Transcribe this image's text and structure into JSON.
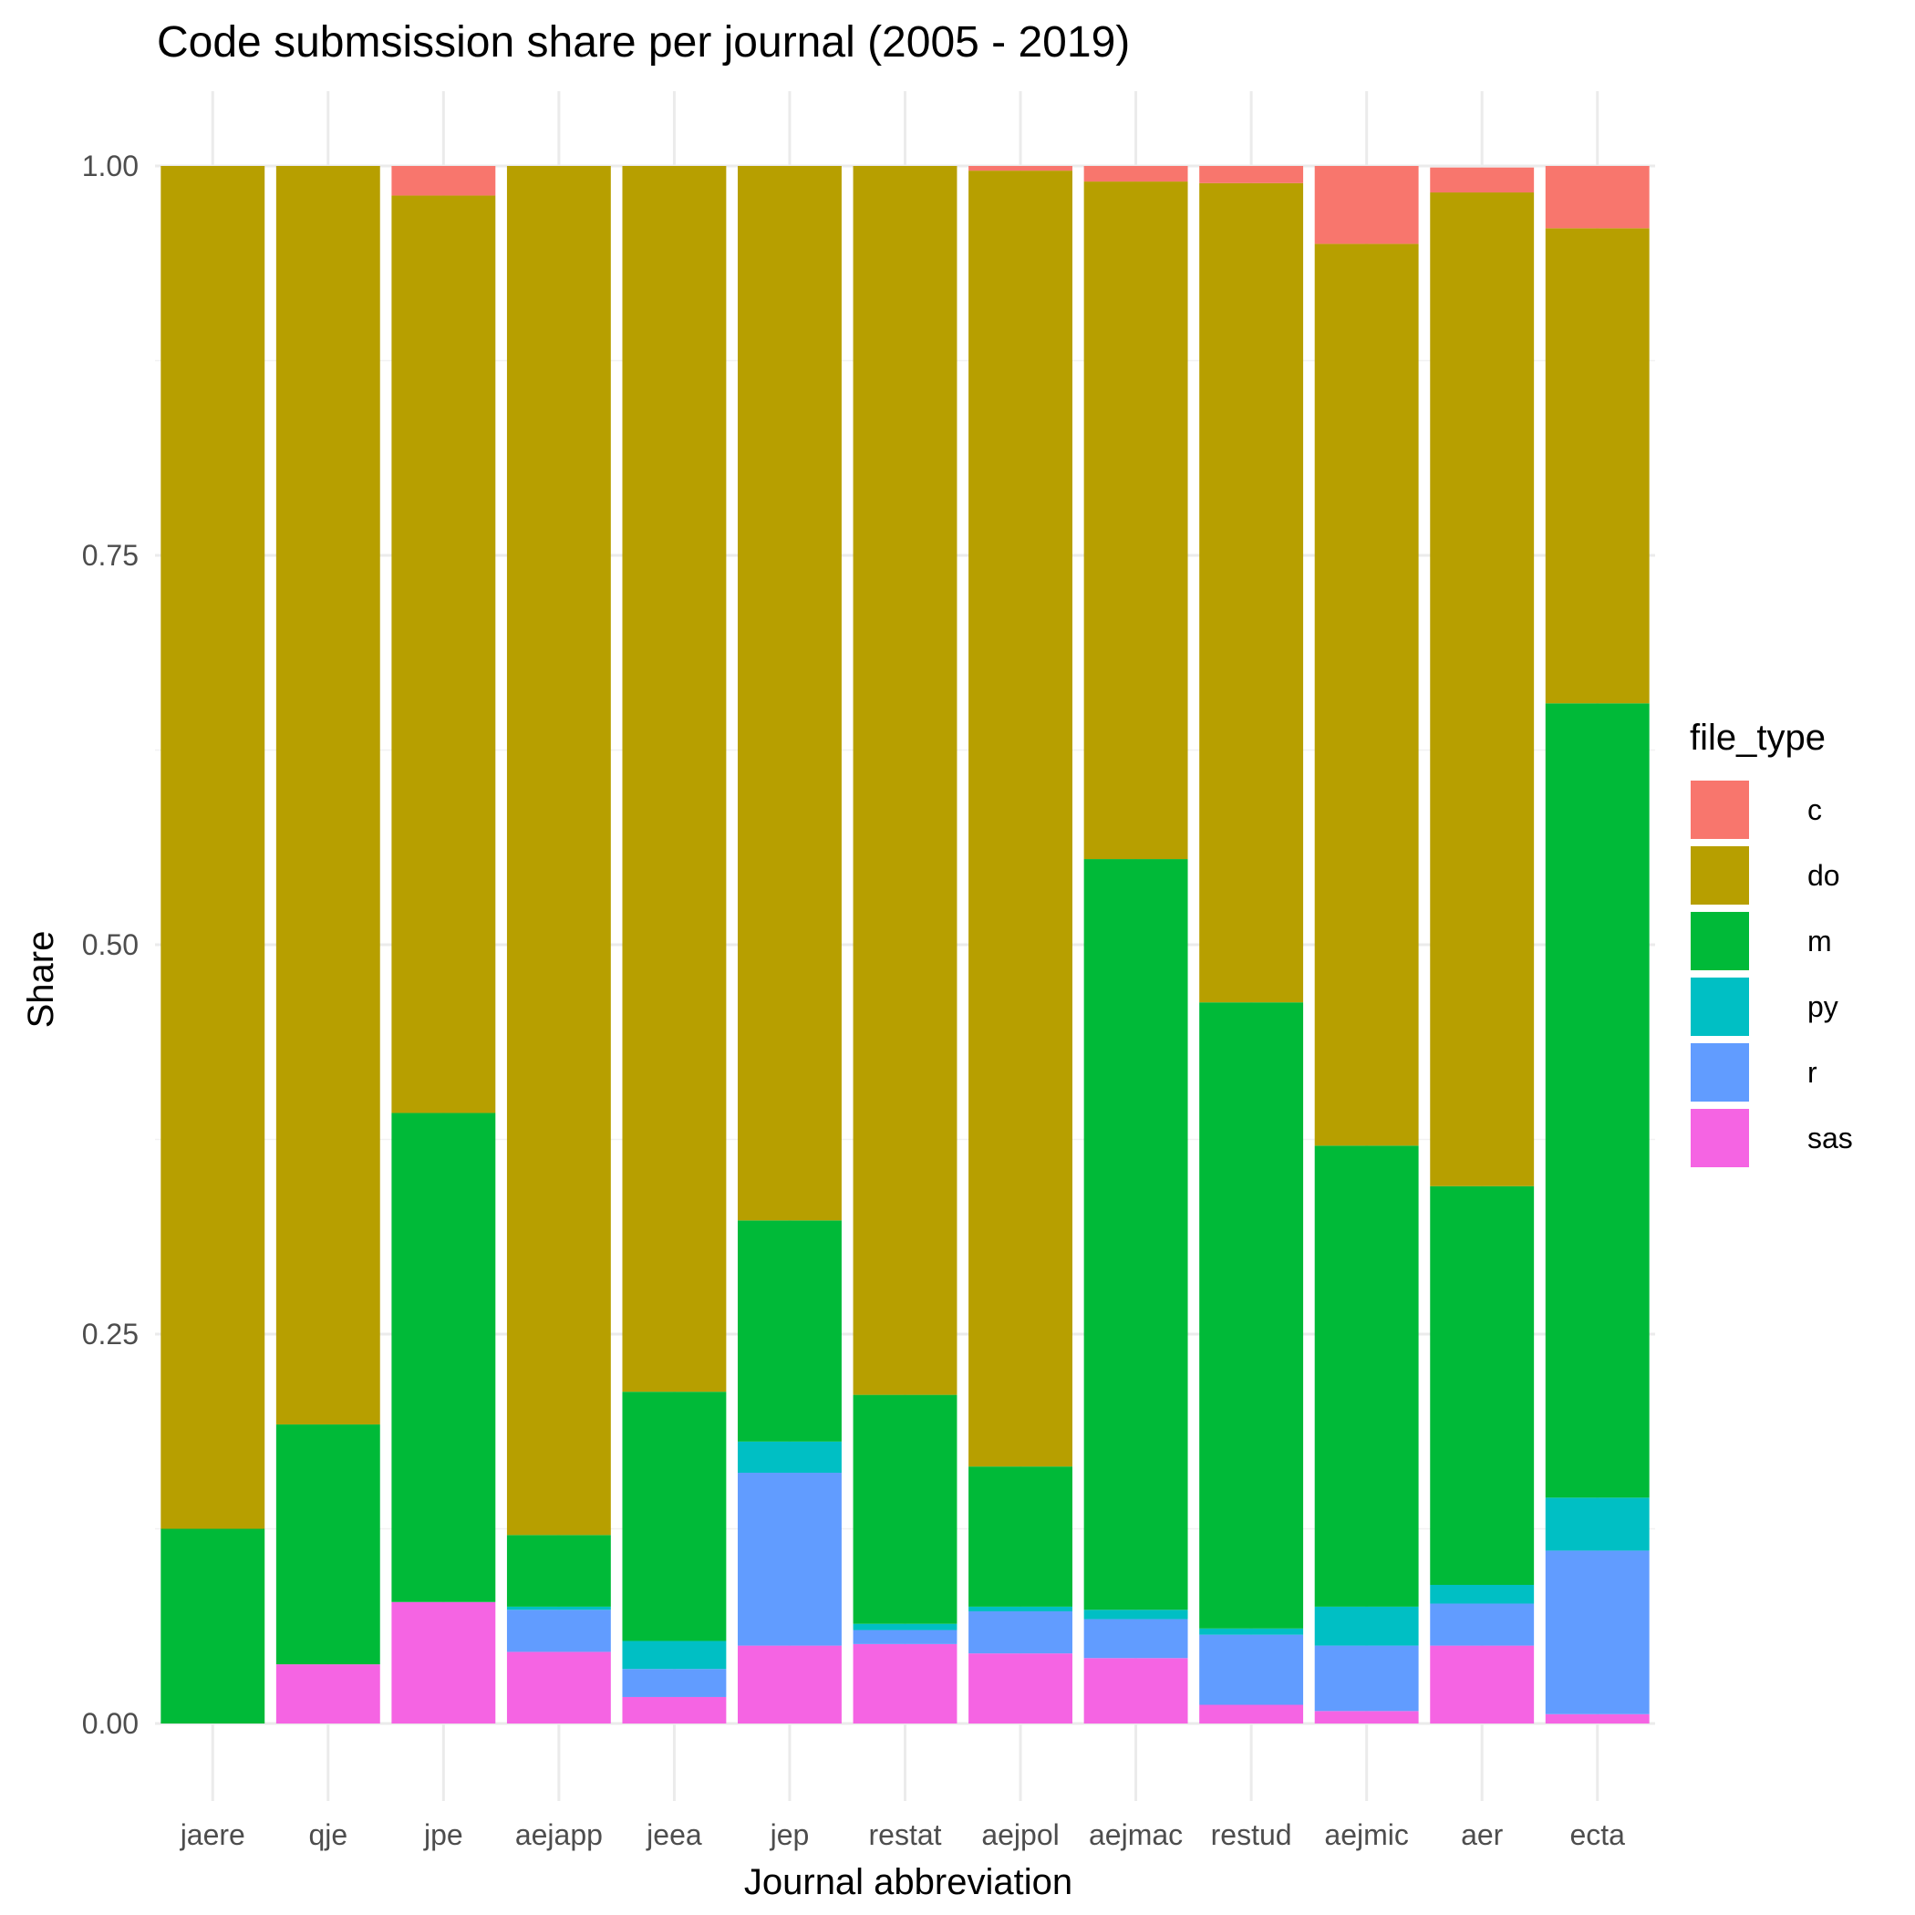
{
  "chart_data": {
    "type": "bar",
    "stacked": true,
    "title": "Code submsission share per journal (2005 - 2019)",
    "xlabel": "Journal abbreviation",
    "ylabel": "Share",
    "ylim": [
      0,
      1
    ],
    "yticks": [
      "0.00",
      "0.25",
      "0.50",
      "0.75",
      "1.00"
    ],
    "ytick_values": [
      0,
      0.25,
      0.5,
      0.75,
      1.0
    ],
    "grid": true,
    "legend_title": "file_type",
    "legend_position": "right",
    "categories": [
      "jaere",
      "qje",
      "jpe",
      "aejapp",
      "jeea",
      "jep",
      "restat",
      "aejpol",
      "aejmac",
      "restud",
      "aejmic",
      "aer",
      "ecta"
    ],
    "series": [
      {
        "name": "sas",
        "color": "#F564E3",
        "values": [
          0.0,
          0.038,
          0.078,
          0.046,
          0.017,
          0.05,
          0.051,
          0.045,
          0.042,
          0.012,
          0.008,
          0.05,
          0.006
        ]
      },
      {
        "name": "r",
        "color": "#619CFF",
        "values": [
          0.0,
          0.0,
          0.0,
          0.027,
          0.018,
          0.111,
          0.009,
          0.027,
          0.025,
          0.045,
          0.042,
          0.027,
          0.105
        ]
      },
      {
        "name": "py",
        "color": "#00BFC4",
        "values": [
          0.0,
          0.0,
          0.0,
          0.002,
          0.018,
          0.02,
          0.004,
          0.003,
          0.006,
          0.004,
          0.025,
          0.012,
          0.034
        ]
      },
      {
        "name": "m",
        "color": "#00BA38",
        "values": [
          0.125,
          0.154,
          0.314,
          0.046,
          0.16,
          0.142,
          0.147,
          0.09,
          0.482,
          0.402,
          0.296,
          0.256,
          0.51
        ]
      },
      {
        "name": "do",
        "color": "#B79F00",
        "values": [
          0.875,
          0.808,
          0.589,
          0.879,
          0.787,
          0.677,
          0.789,
          0.832,
          0.435,
          0.526,
          0.579,
          0.638,
          0.305
        ]
      },
      {
        "name": "c",
        "color": "#F8766D",
        "values": [
          0.0,
          0.0,
          0.019,
          0.0,
          0.0,
          0.0,
          0.0,
          0.003,
          0.01,
          0.011,
          0.05,
          0.016,
          0.04
        ]
      }
    ],
    "legend_order": [
      "c",
      "do",
      "m",
      "py",
      "r",
      "sas"
    ]
  }
}
